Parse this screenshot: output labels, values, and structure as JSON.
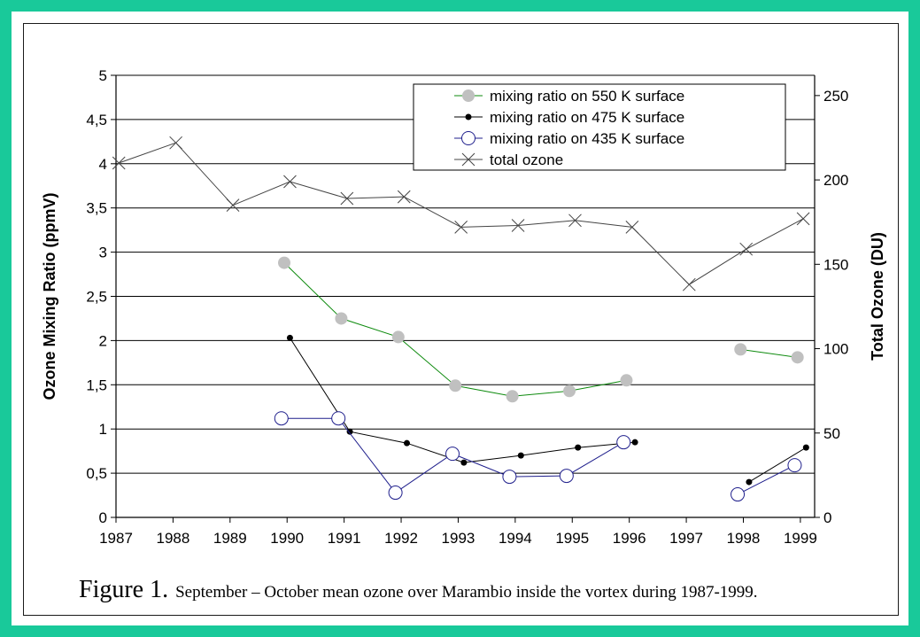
{
  "figure": {
    "label": "Figure 1.",
    "caption": "September – October mean ozone over Marambio inside the vortex during 1987-1999."
  },
  "colors": {
    "frame": "#19c99a",
    "series_550": "#0d8a0d",
    "marker_550": "#c0c0c0",
    "series_475": "#000000",
    "series_435": "#1f1f8c",
    "total_ozone": "#444444"
  },
  "chart_data": {
    "type": "line",
    "xlabel": "",
    "ylabel": "Ozone Mixing Ratio (ppmV)",
    "y2label": "Total Ozone (DU)",
    "x_ticks": [
      "1987",
      "1988",
      "1989",
      "1990",
      "1991",
      "1992",
      "1993",
      "1994",
      "1995",
      "1996",
      "1997",
      "1998",
      "1999"
    ],
    "xlim": [
      1987,
      1999.25
    ],
    "ylim": [
      0,
      5
    ],
    "y_ticks": [
      "0",
      "0,5",
      "1",
      "1,5",
      "2",
      "2,5",
      "3",
      "3,5",
      "4",
      "4,5",
      "5"
    ],
    "y2lim": [
      0,
      262
    ],
    "y2_ticks": [
      "0",
      "50",
      "100",
      "150",
      "200",
      "250"
    ],
    "grid": "horizontal",
    "legend_position": "top-right",
    "series": [
      {
        "name": "mixing ratio on 550 K surface",
        "axis": "left",
        "marker": "filled-circle-gray",
        "segments": [
          [
            [
              1989.95,
              2.88
            ],
            [
              1990.95,
              2.25
            ],
            [
              1991.95,
              2.04
            ],
            [
              1992.95,
              1.49
            ],
            [
              1993.95,
              1.37
            ],
            [
              1994.95,
              1.43
            ],
            [
              1995.95,
              1.55
            ]
          ],
          [
            [
              1997.95,
              1.9
            ],
            [
              1998.95,
              1.81
            ]
          ]
        ]
      },
      {
        "name": "mixing ratio on 475 K surface",
        "axis": "left",
        "marker": "small-dot",
        "segments": [
          [
            [
              1990.05,
              2.03
            ],
            [
              1991.1,
              0.97
            ],
            [
              1992.1,
              0.84
            ],
            [
              1993.1,
              0.62
            ],
            [
              1994.1,
              0.7
            ],
            [
              1995.1,
              0.79
            ],
            [
              1996.1,
              0.85
            ]
          ],
          [
            [
              1998.1,
              0.4
            ],
            [
              1999.1,
              0.79
            ]
          ]
        ]
      },
      {
        "name": "mixing ratio on 435 K surface",
        "axis": "left",
        "marker": "open-circle",
        "segments": [
          [
            [
              1989.9,
              1.12
            ],
            [
              1990.9,
              1.12
            ],
            [
              1991.9,
              0.28
            ],
            [
              1992.9,
              0.72
            ],
            [
              1993.9,
              0.46
            ],
            [
              1994.9,
              0.47
            ],
            [
              1995.9,
              0.85
            ]
          ],
          [
            [
              1997.9,
              0.26
            ],
            [
              1998.9,
              0.59
            ]
          ]
        ]
      },
      {
        "name": "total ozone",
        "axis": "right",
        "marker": "x",
        "segments": [
          [
            [
              1987.05,
              210
            ],
            [
              1988.05,
              222
            ],
            [
              1989.05,
              185
            ],
            [
              1990.05,
              199
            ],
            [
              1991.05,
              189
            ],
            [
              1992.05,
              190
            ],
            [
              1993.05,
              172
            ],
            [
              1994.05,
              173
            ],
            [
              1995.05,
              176
            ],
            [
              1996.05,
              172
            ],
            [
              1997.05,
              138
            ],
            [
              1998.05,
              159
            ],
            [
              1999.05,
              177
            ]
          ]
        ]
      }
    ]
  }
}
